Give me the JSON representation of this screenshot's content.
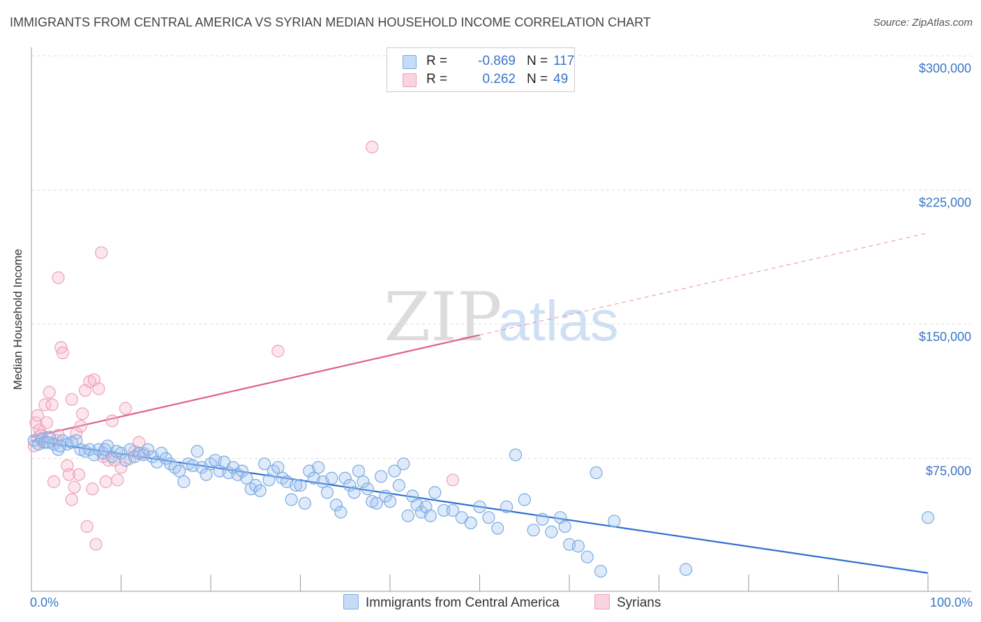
{
  "title": "IMMIGRANTS FROM CENTRAL AMERICA VS SYRIAN MEDIAN HOUSEHOLD INCOME CORRELATION CHART",
  "source": "Source: ZipAtlas.com",
  "watermark": {
    "zip": "ZIP",
    "atlas": "atlas"
  },
  "legend_top": {
    "rows": [
      {
        "r_label": "R =",
        "r_value": "-0.869",
        "n_label": "N =",
        "n_value": "117"
      },
      {
        "r_label": "R =",
        "r_value": "0.262",
        "n_label": "N =",
        "n_value": "49"
      }
    ]
  },
  "legend_bottom": {
    "items": [
      {
        "label": "Immigrants from Central America"
      },
      {
        "label": "Syrians"
      }
    ]
  },
  "chart_data": {
    "type": "scatter",
    "xlabel": "",
    "ylabel": "Median Household Income",
    "xlim": [
      0,
      100
    ],
    "ylim": [
      0,
      310000
    ],
    "x_tick_labels": [
      "0.0%",
      "100.0%"
    ],
    "y_ticks": [
      75000,
      150000,
      225000,
      300000
    ],
    "y_tick_labels": [
      "$75,000",
      "$150,000",
      "$225,000",
      "$300,000"
    ],
    "grid": true,
    "legend_placement": "bottom",
    "colors": {
      "blue_stroke": "#7aaae0",
      "blue_fill": "rgba(160,196,240,0.35)",
      "blue_line": "#2e6fcf",
      "pink_stroke": "#eea0b8",
      "pink_fill": "rgba(246,182,204,0.35)",
      "pink_line": "#e0608a"
    },
    "series": [
      {
        "name": "Immigrants from Central America",
        "r": -0.869,
        "n": 117,
        "trend": {
          "x": [
            0,
            100
          ],
          "y": [
            85000,
            11000
          ]
        },
        "points": [
          [
            0.3,
            85000
          ],
          [
            0.8,
            83000
          ],
          [
            1.2,
            86000
          ],
          [
            1.5,
            84000
          ],
          [
            2.0,
            87000
          ],
          [
            2.5,
            83000
          ],
          [
            3.0,
            80000
          ],
          [
            3.5,
            85000
          ],
          [
            4.0,
            83000
          ],
          [
            4.5,
            84000
          ],
          [
            5.0,
            85000
          ],
          [
            5.5,
            80000
          ],
          [
            6.0,
            79000
          ],
          [
            6.5,
            80000
          ],
          [
            7.0,
            77000
          ],
          [
            7.5,
            80000
          ],
          [
            8.0,
            78000
          ],
          [
            8.5,
            82000
          ],
          [
            9.0,
            76000
          ],
          [
            9.5,
            79000
          ],
          [
            10.0,
            78000
          ],
          [
            10.5,
            74000
          ],
          [
            11.0,
            80000
          ],
          [
            11.5,
            76000
          ],
          [
            12.0,
            78000
          ],
          [
            12.5,
            77000
          ],
          [
            13.0,
            80000
          ],
          [
            13.5,
            76000
          ],
          [
            14.0,
            73000
          ],
          [
            14.5,
            78000
          ],
          [
            15.0,
            75000
          ],
          [
            15.5,
            72000
          ],
          [
            16.0,
            70000
          ],
          [
            16.5,
            68000
          ],
          [
            17.0,
            62000
          ],
          [
            17.5,
            72000
          ],
          [
            18.0,
            71000
          ],
          [
            18.5,
            79000
          ],
          [
            19.0,
            70000
          ],
          [
            19.5,
            66000
          ],
          [
            20.0,
            72000
          ],
          [
            20.5,
            74000
          ],
          [
            21.0,
            68000
          ],
          [
            21.5,
            73000
          ],
          [
            22.0,
            67000
          ],
          [
            22.5,
            70000
          ],
          [
            23.0,
            66000
          ],
          [
            23.5,
            68000
          ],
          [
            24.0,
            64000
          ],
          [
            24.5,
            58000
          ],
          [
            25.0,
            60000
          ],
          [
            25.5,
            57000
          ],
          [
            26.0,
            72000
          ],
          [
            26.5,
            63000
          ],
          [
            27.0,
            68000
          ],
          [
            27.5,
            70000
          ],
          [
            28.0,
            64000
          ],
          [
            28.5,
            62000
          ],
          [
            29.0,
            52000
          ],
          [
            29.5,
            60000
          ],
          [
            30.0,
            60000
          ],
          [
            30.5,
            50000
          ],
          [
            31.0,
            68000
          ],
          [
            31.5,
            64000
          ],
          [
            32.0,
            70000
          ],
          [
            32.5,
            62000
          ],
          [
            33.0,
            56000
          ],
          [
            33.5,
            64000
          ],
          [
            34.0,
            49000
          ],
          [
            34.5,
            45000
          ],
          [
            35.0,
            64000
          ],
          [
            35.5,
            60000
          ],
          [
            36.0,
            56000
          ],
          [
            36.5,
            68000
          ],
          [
            37.0,
            62000
          ],
          [
            37.5,
            58000
          ],
          [
            38.0,
            51000
          ],
          [
            38.5,
            50000
          ],
          [
            39.0,
            65000
          ],
          [
            39.5,
            54000
          ],
          [
            40.0,
            51000
          ],
          [
            40.5,
            68000
          ],
          [
            41.0,
            60000
          ],
          [
            41.5,
            72000
          ],
          [
            42.0,
            43000
          ],
          [
            42.5,
            54000
          ],
          [
            43.0,
            49000
          ],
          [
            43.5,
            45000
          ],
          [
            44.0,
            48000
          ],
          [
            44.5,
            43000
          ],
          [
            45.0,
            56000
          ],
          [
            46.0,
            46000
          ],
          [
            47.0,
            46000
          ],
          [
            48.0,
            42000
          ],
          [
            49.0,
            39000
          ],
          [
            50.0,
            48000
          ],
          [
            51.0,
            42000
          ],
          [
            52.0,
            36000
          ],
          [
            53.0,
            48000
          ],
          [
            54.0,
            77000
          ],
          [
            55.0,
            52000
          ],
          [
            56.0,
            35000
          ],
          [
            57.0,
            41000
          ],
          [
            58.0,
            34000
          ],
          [
            59.0,
            42000
          ],
          [
            59.5,
            37000
          ],
          [
            60.0,
            27000
          ],
          [
            61.0,
            26000
          ],
          [
            62.0,
            20000
          ],
          [
            63.0,
            67000
          ],
          [
            63.5,
            12000
          ],
          [
            65.0,
            40000
          ],
          [
            73.0,
            13000
          ],
          [
            100.0,
            42000
          ],
          [
            1.8,
            84000
          ],
          [
            3.2,
            82000
          ],
          [
            8.2,
            80000
          ]
        ]
      },
      {
        "name": "Syrians",
        "r": 0.262,
        "n": 49,
        "trend": {
          "x": [
            0,
            50
          ],
          "y": [
            87000,
            144000
          ]
        },
        "trend_dashed": {
          "x": [
            50,
            100
          ],
          "y": [
            144000,
            201000
          ]
        },
        "points": [
          [
            0.3,
            82000
          ],
          [
            0.5,
            95000
          ],
          [
            0.7,
            99000
          ],
          [
            0.9,
            91000
          ],
          [
            1.1,
            88000
          ],
          [
            1.3,
            84000
          ],
          [
            1.5,
            105000
          ],
          [
            1.7,
            95000
          ],
          [
            2.0,
            112000
          ],
          [
            2.3,
            105000
          ],
          [
            2.5,
            62000
          ],
          [
            2.8,
            85000
          ],
          [
            3.0,
            88000
          ],
          [
            3.3,
            137000
          ],
          [
            3.5,
            134000
          ],
          [
            4.0,
            71000
          ],
          [
            4.2,
            66000
          ],
          [
            4.5,
            108000
          ],
          [
            4.8,
            59000
          ],
          [
            5.0,
            89000
          ],
          [
            5.3,
            66000
          ],
          [
            5.5,
            93000
          ],
          [
            5.7,
            100000
          ],
          [
            6.0,
            113000
          ],
          [
            6.2,
            37000
          ],
          [
            6.5,
            118000
          ],
          [
            6.8,
            58000
          ],
          [
            7.0,
            119000
          ],
          [
            7.2,
            27000
          ],
          [
            7.5,
            114000
          ],
          [
            7.8,
            190000
          ],
          [
            8.0,
            76000
          ],
          [
            8.3,
            62000
          ],
          [
            8.6,
            74000
          ],
          [
            9.0,
            96000
          ],
          [
            9.3,
            74000
          ],
          [
            9.6,
            63000
          ],
          [
            10.0,
            70000
          ],
          [
            10.5,
            103000
          ],
          [
            11.0,
            75000
          ],
          [
            11.5,
            79000
          ],
          [
            12.0,
            84000
          ],
          [
            12.5,
            78000
          ],
          [
            3.0,
            176000
          ],
          [
            4.5,
            52000
          ],
          [
            27.5,
            135000
          ],
          [
            38.0,
            249000
          ],
          [
            47.0,
            63000
          ],
          [
            1.0,
            88000
          ]
        ]
      }
    ]
  }
}
